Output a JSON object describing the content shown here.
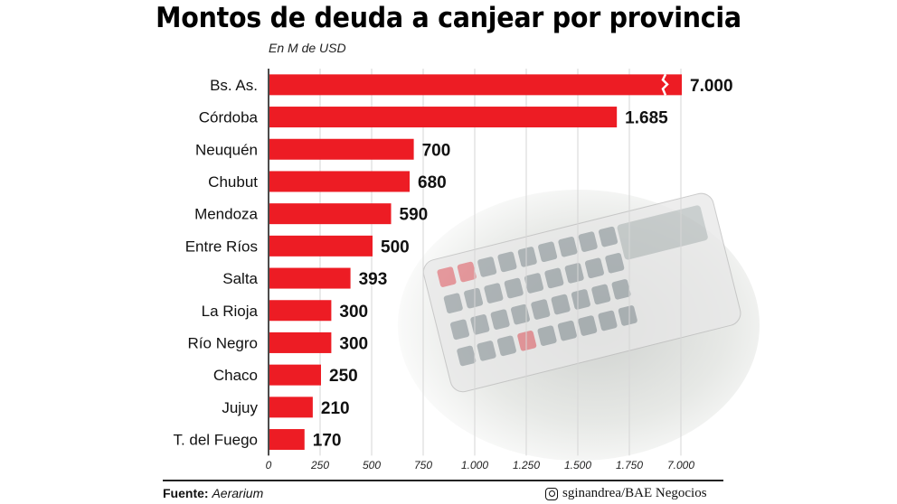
{
  "chart_data": {
    "type": "bar",
    "orientation": "horizontal",
    "title": "Montos de deuda a canjear por provincia",
    "subtitle": "En M de USD",
    "categories": [
      "Bs. As.",
      "Córdoba",
      "Neuquén",
      "Chubut",
      "Mendoza",
      "Entre Ríos",
      "Salta",
      "La Rioja",
      "Río Negro",
      "Chaco",
      "Jujuy",
      "T. del Fuego"
    ],
    "values": [
      7000,
      1685,
      700,
      680,
      590,
      500,
      393,
      300,
      300,
      250,
      210,
      170
    ],
    "value_labels": [
      "7.000",
      "1.685",
      "700",
      "680",
      "590",
      "500",
      "393",
      "300",
      "300",
      "250",
      "210",
      "170"
    ],
    "x_ticks": [
      0,
      250,
      500,
      750,
      1000,
      1250,
      1500,
      1750,
      7000
    ],
    "x_tick_labels": [
      "0",
      "250",
      "500",
      "750",
      "1.000",
      "1.250",
      "1.500",
      "1.750",
      "7.000"
    ],
    "xlim": [
      0,
      7000
    ],
    "axis_break": "between 1.750 and 7.000",
    "grid": true,
    "bar_color": "#ed1c24"
  },
  "footer": {
    "source_label": "Fuente:",
    "source_value": "Aerarium",
    "credit_icon": "instagram-icon",
    "credit": "sginandrea/BAE Negocios"
  }
}
